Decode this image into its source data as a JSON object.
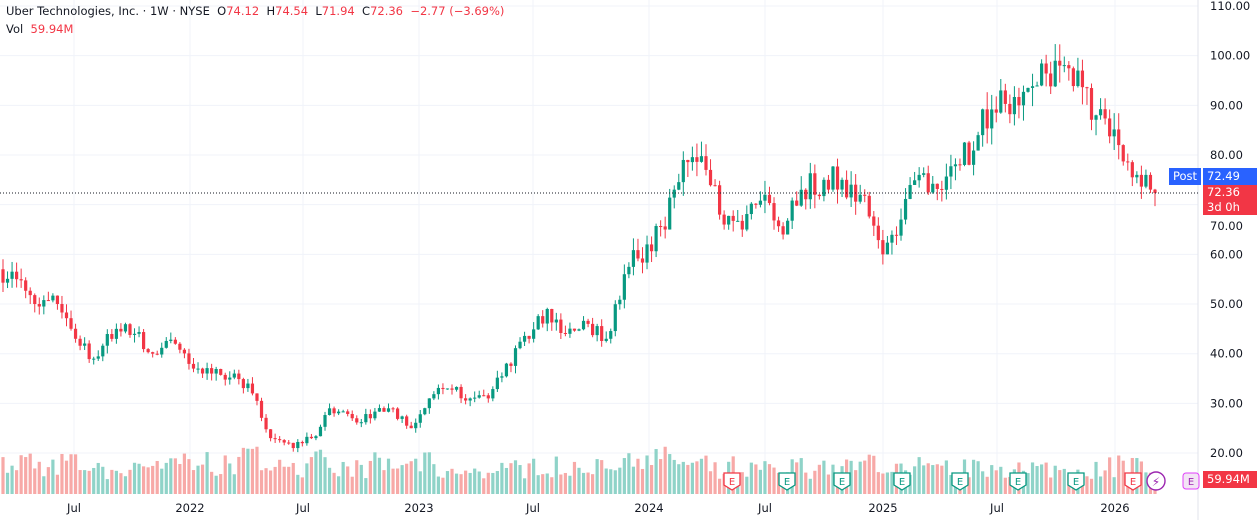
{
  "legend": {
    "title": "Uber Technologies, Inc. · 1W · NYSE",
    "open_label": "O",
    "open": "74.12",
    "high_label": "H",
    "high": "74.54",
    "low_label": "L",
    "low": "71.94",
    "close_label": "C",
    "close": "72.36",
    "change": "−2.77 (−3.69%)",
    "vol_label": "Vol",
    "vol": "59.94M"
  },
  "price_tags": {
    "post_label": "Post",
    "post_price": "72.49",
    "last_price": "72.36",
    "countdown": "3d 0h",
    "volume": "59.94M"
  },
  "colors": {
    "up": "#089981",
    "down": "#f23645",
    "post": "#2962ff",
    "vol_up": "#8fd3c8",
    "vol_down": "#f7a9a7"
  },
  "chart_data": {
    "type": "candlestick",
    "symbol": "UBER",
    "interval": "1W",
    "ylim": [
      15,
      110
    ],
    "y_ticks": [
      "110.00",
      "100.00",
      "90.00",
      "80.00",
      "70.00",
      "60.00",
      "50.00",
      "40.00",
      "30.00",
      "20.00"
    ],
    "x_ticks": [
      "Jul",
      "2022",
      "Jul",
      "2023",
      "Jul",
      "2024",
      "Jul",
      "2025",
      "Jul",
      "2026"
    ],
    "start_price": 57,
    "monthly_close": [
      55,
      50,
      50,
      43,
      39,
      45,
      44,
      40,
      42,
      37,
      36,
      36,
      32,
      23,
      21,
      23,
      29,
      27,
      27,
      29,
      25,
      31,
      33,
      31,
      31,
      38,
      43,
      49,
      44,
      46,
      43,
      56,
      62,
      65,
      79,
      77,
      66,
      65,
      72,
      64,
      73,
      75,
      75,
      72,
      60,
      67,
      76,
      73,
      78,
      84,
      93,
      90,
      94,
      98,
      97,
      88,
      82,
      76,
      72.36
    ],
    "monthly_volume_millions": [
      12,
      14,
      12,
      13,
      12,
      10,
      12,
      13,
      14,
      13,
      14,
      12,
      15,
      17,
      15,
      12,
      14,
      12,
      11,
      13,
      12,
      13,
      10,
      9,
      11,
      12,
      11,
      13,
      12,
      10,
      11,
      14,
      18,
      16,
      14,
      12,
      10,
      12,
      11,
      10,
      12,
      11,
      11,
      12,
      14,
      12,
      13,
      10,
      11,
      11,
      12,
      11,
      10,
      11,
      12,
      11,
      12,
      13,
      11
    ],
    "earnings_markers": [
      "E",
      "E",
      "E",
      "E",
      "E",
      "E",
      "E",
      "E"
    ],
    "dividend_marker": "⚡",
    "upcoming_earnings": "E"
  }
}
